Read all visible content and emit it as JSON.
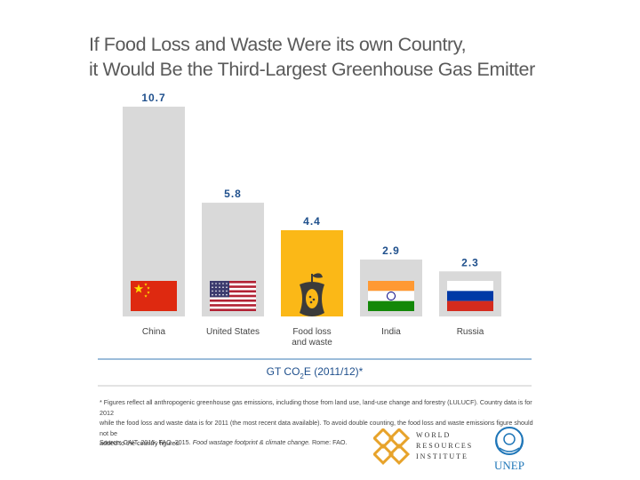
{
  "title": {
    "line1": "If Food Loss and Waste Were its own Country,",
    "line2": "it Would Be the Third-Largest Greenhouse Gas Emitter"
  },
  "chart_data": {
    "type": "bar",
    "title": "If Food Loss and Waste Were its own Country, it Would Be the Third-Largest Greenhouse Gas Emitter",
    "categories": [
      "China",
      "United States",
      "Food loss and waste",
      "India",
      "Russia"
    ],
    "category_lines": [
      [
        "China"
      ],
      [
        "United States"
      ],
      [
        "Food loss",
        "and waste"
      ],
      [
        "India"
      ],
      [
        "Russia"
      ]
    ],
    "values": [
      10.7,
      5.8,
      4.4,
      2.9,
      2.3
    ],
    "value_labels": [
      "10.7",
      "5.8",
      "4.4",
      "2.9",
      "2.3"
    ],
    "icons": [
      "china-flag-icon",
      "us-flag-icon",
      "apple-core-icon",
      "india-flag-icon",
      "russia-flag-icon"
    ],
    "xlabel": "GT CO2E (2011/12)*",
    "xlabel_parts": {
      "prefix": "GT CO",
      "sub": "2",
      "suffix": "E (2011/12)*"
    },
    "ylabel": "",
    "ylim": [
      0,
      10.7
    ],
    "colors": {
      "default_bar": "#d9d9d9",
      "highlight_bar": "#fbb817",
      "value_text": "#1e4f8c",
      "axis_line": "#3a78b5",
      "category_text": "#444444"
    },
    "highlight_index": 2
  },
  "footnote": {
    "line1": "* Figures reflect all anthropogenic greenhouse gas emissions, including those from land use, land-use change and forestry (LULUCF). Country data is for 2012",
    "line2": "while the food loss and waste data is for 2011 (the most recent data available). To avoid double counting, the food loss and waste emissions figure should not be",
    "line3": "added to the country figures."
  },
  "source": {
    "prefix": "Source: CAIT. 2015; FAO. 2015.",
    "italic": "Food wastage footprint & climate change.",
    "suffix": "Rome: FAO."
  },
  "logos": {
    "wri": [
      "WORLD",
      "RESOURCES",
      "INSTITUTE"
    ],
    "unep": "UNEP"
  }
}
